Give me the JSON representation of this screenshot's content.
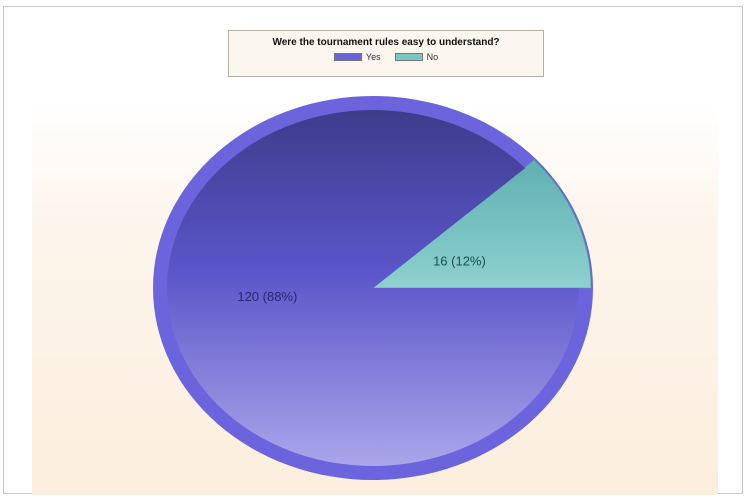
{
  "chart_data": {
    "type": "pie",
    "title": "Were the tournament rules easy to understand?",
    "legend_placement": "top",
    "series": [
      {
        "name": "Yes",
        "value": 120,
        "percent": 88,
        "label": "120 (88%)",
        "color": "#6a63db"
      },
      {
        "name": "No",
        "value": 16,
        "percent": 12,
        "label": "16 (12%)",
        "color": "#7cc6c6"
      }
    ]
  }
}
